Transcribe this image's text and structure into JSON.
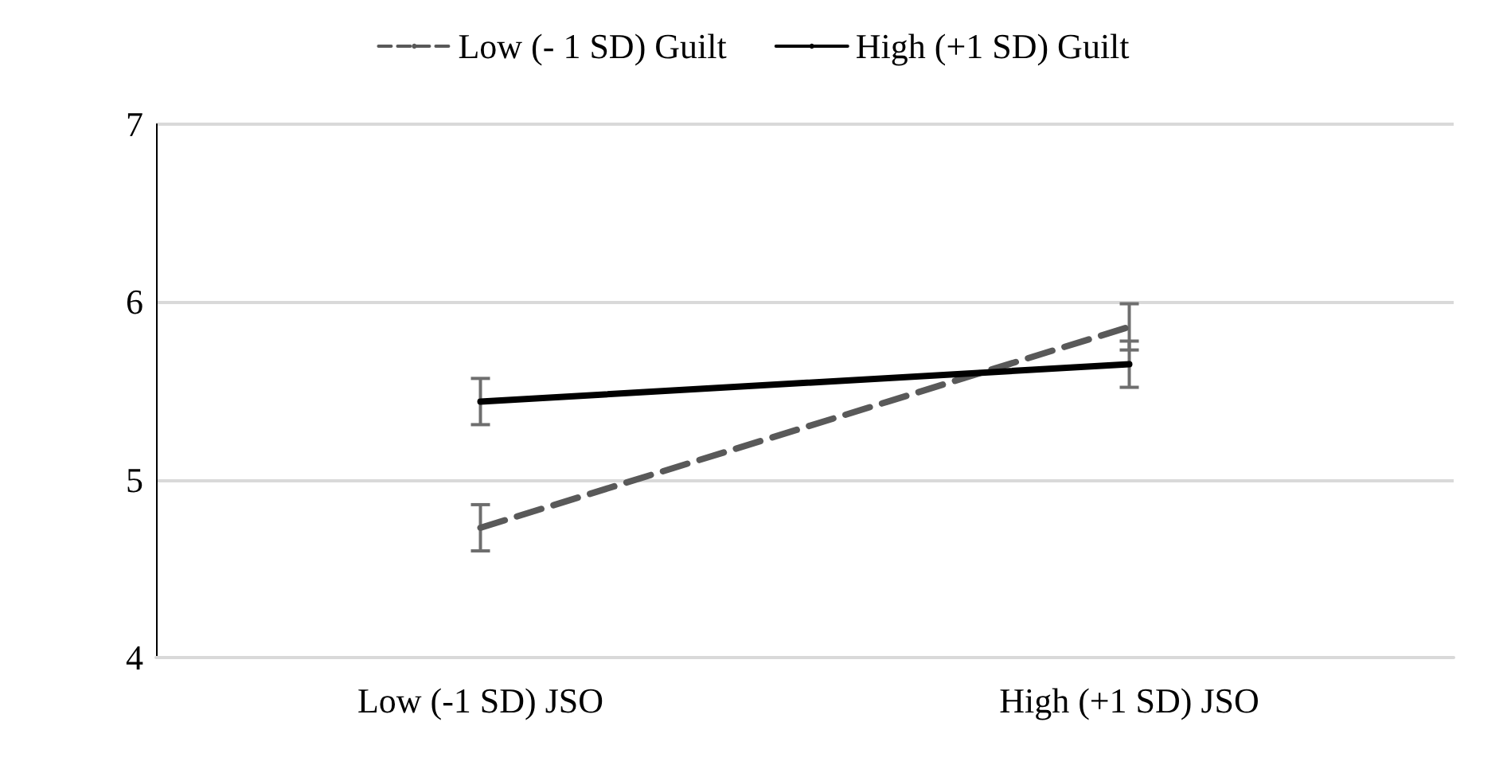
{
  "chart_data": {
    "type": "line",
    "categories": [
      "Low (-1 SD) JSO",
      "High (+1 SD) JSO"
    ],
    "series": [
      {
        "name": "Low (- 1 SD) Guilt",
        "color": "#595959",
        "values": [
          4.73,
          5.86
        ],
        "errors": [
          0.13,
          0.13
        ],
        "line_style": "dashed"
      },
      {
        "name": "High (+1 SD) Guilt",
        "color": "#000000",
        "values": [
          5.44,
          5.65
        ],
        "errors": [
          0.13,
          0.13
        ],
        "line_style": "solid"
      }
    ],
    "ylim": [
      4,
      7
    ],
    "yticks": [
      4,
      5,
      6,
      7
    ],
    "grid": "y",
    "legend": "top",
    "marker": "none"
  }
}
